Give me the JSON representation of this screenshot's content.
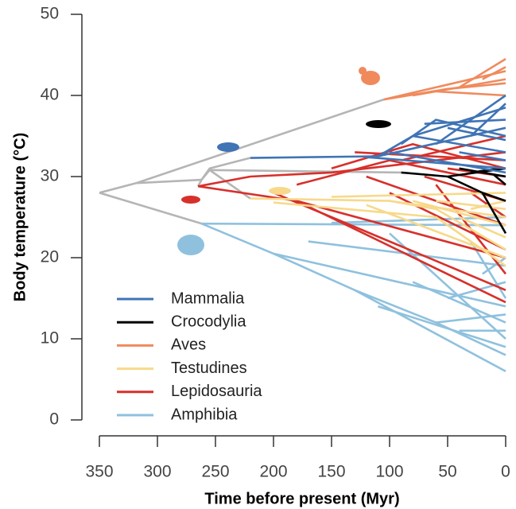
{
  "chart_data": {
    "type": "line",
    "xlabel": "Time before present (Myr)",
    "ylabel": "Body temperature (°C)",
    "xlim": [
      350,
      0
    ],
    "xticks": [
      350,
      300,
      250,
      200,
      150,
      100,
      50,
      0
    ],
    "ylim": [
      0,
      50
    ],
    "yticks": [
      0,
      10,
      20,
      30,
      40,
      50
    ],
    "backbone": {
      "color": "#b5b5b5",
      "branches": [
        {
          "x": [
            350,
            318
          ],
          "values": [
            28,
            29.2
          ]
        },
        {
          "x": [
            350,
            262
          ],
          "values": [
            28,
            24.2
          ]
        },
        {
          "x": [
            318,
            105
          ],
          "values": [
            29.2,
            39.5
          ]
        },
        {
          "x": [
            318,
            262
          ],
          "values": [
            29.2,
            29.6
          ]
        },
        {
          "x": [
            262,
            255,
            220
          ],
          "values": [
            29.6,
            31,
            32.3
          ]
        },
        {
          "x": [
            262,
            255,
            90
          ],
          "values": [
            29.6,
            30.8,
            30.5
          ]
        },
        {
          "x": [
            262,
            265
          ],
          "values": [
            29.6,
            28.8
          ]
        },
        {
          "x": [
            255,
            220
          ],
          "values": [
            30.8,
            27.3
          ]
        }
      ]
    },
    "series": [
      {
        "name": "Mammalia",
        "color": "#3f74b5",
        "branches": [
          {
            "x": [
              220,
              110
            ],
            "values": [
              32.3,
              32.5
            ]
          },
          {
            "x": [
              110,
              0
            ],
            "values": [
              32.5,
              36
            ]
          },
          {
            "x": [
              110,
              80,
              0
            ],
            "values": [
              32.5,
              35,
              38.5
            ]
          },
          {
            "x": [
              80,
              0
            ],
            "values": [
              35,
              33
            ]
          },
          {
            "x": [
              120,
              0
            ],
            "values": [
              32.4,
              31
            ]
          },
          {
            "x": [
              60,
              0
            ],
            "values": [
              34,
              40
            ]
          },
          {
            "x": [
              50,
              0
            ],
            "values": [
              36,
              34.5
            ]
          },
          {
            "x": [
              100,
              0
            ],
            "values": [
              33,
              30.5
            ]
          },
          {
            "x": [
              70,
              0
            ],
            "values": [
              36.5,
              37
            ]
          },
          {
            "x": [
              30,
              0
            ],
            "values": [
              35,
              39
            ]
          },
          {
            "x": [
              40,
              0
            ],
            "values": [
              33,
              32
            ]
          },
          {
            "x": [
              90,
              60,
              0
            ],
            "values": [
              34,
              37,
              35
            ]
          }
        ]
      },
      {
        "name": "Crocodylia",
        "color": "#000000",
        "branches": [
          {
            "x": [
              90,
              50,
              0
            ],
            "values": [
              30.5,
              30,
              31
            ]
          },
          {
            "x": [
              50,
              20,
              0
            ],
            "values": [
              30,
              28,
              27
            ]
          },
          {
            "x": [
              20,
              0
            ],
            "values": [
              28,
              23
            ]
          },
          {
            "x": [
              40,
              0
            ],
            "values": [
              31,
              30
            ]
          },
          {
            "x": [
              30,
              5
            ],
            "values": [
              30.5,
              31
            ]
          },
          {
            "x": [
              10,
              0
            ],
            "values": [
              30.2,
              29
            ]
          }
        ]
      },
      {
        "name": "Aves",
        "color": "#f08a5d",
        "branches": [
          {
            "x": [
              105,
              0
            ],
            "values": [
              39.5,
              43
            ]
          },
          {
            "x": [
              105,
              50,
              0
            ],
            "values": [
              39.5,
              40.8,
              41.5
            ]
          },
          {
            "x": [
              80,
              0
            ],
            "values": [
              40,
              42
            ]
          },
          {
            "x": [
              40,
              0
            ],
            "values": [
              41,
              44.5
            ]
          },
          {
            "x": [
              60,
              0
            ],
            "values": [
              40.5,
              40
            ]
          },
          {
            "x": [
              20,
              0
            ],
            "values": [
              42,
              43.5
            ]
          }
        ]
      },
      {
        "name": "Testudines",
        "color": "#f7d98b",
        "branches": [
          {
            "x": [
              220,
              100,
              0
            ],
            "values": [
              27.3,
              27,
              25
            ]
          },
          {
            "x": [
              100,
              60,
              0
            ],
            "values": [
              27,
              26,
              21
            ]
          },
          {
            "x": [
              150,
              0
            ],
            "values": [
              27.5,
              28
            ]
          },
          {
            "x": [
              80,
              0
            ],
            "values": [
              27,
              24
            ]
          },
          {
            "x": [
              60,
              0
            ],
            "values": [
              27,
              26
            ]
          },
          {
            "x": [
              40,
              0
            ],
            "values": [
              25,
              22.5
            ]
          },
          {
            "x": [
              120,
              0
            ],
            "values": [
              26.5,
              20
            ]
          },
          {
            "x": [
              30,
              0
            ],
            "values": [
              26,
              27
            ]
          },
          {
            "x": [
              200,
              60,
              0
            ],
            "values": [
              26.8,
              25,
              19
            ]
          }
        ]
      },
      {
        "name": "Lepidosauria",
        "color": "#d7302b",
        "branches": [
          {
            "x": [
              265,
              180,
              0
            ],
            "values": [
              28.8,
              27,
              14.5
            ]
          },
          {
            "x": [
              265,
              220,
              150,
              0
            ],
            "values": [
              28.8,
              30,
              30.5,
              33
            ]
          },
          {
            "x": [
              180,
              100,
              0
            ],
            "values": [
              29,
              32,
              29
            ]
          },
          {
            "x": [
              150,
              80,
              0
            ],
            "values": [
              31,
              34,
              31
            ]
          },
          {
            "x": [
              120,
              0
            ],
            "values": [
              30,
              24
            ]
          },
          {
            "x": [
              100,
              0
            ],
            "values": [
              28,
              21
            ]
          },
          {
            "x": [
              90,
              0
            ],
            "values": [
              32,
              35
            ]
          },
          {
            "x": [
              70,
              0
            ],
            "values": [
              30,
              27
            ]
          },
          {
            "x": [
              60,
              0
            ],
            "values": [
              29,
              18
            ]
          },
          {
            "x": [
              200,
              0
            ],
            "values": [
              28,
              16
            ]
          },
          {
            "x": [
              50,
              0
            ],
            "values": [
              31,
              30
            ]
          },
          {
            "x": [
              130,
              0
            ],
            "values": [
              33,
              32
            ]
          },
          {
            "x": [
              180,
              0
            ],
            "values": [
              27,
              20
            ]
          },
          {
            "x": [
              30,
              0
            ],
            "values": [
              28,
              25
            ]
          }
        ]
      },
      {
        "name": "Amphibia",
        "color": "#8fc1de",
        "branches": [
          {
            "x": [
              262,
              200,
              130,
              0
            ],
            "values": [
              24.2,
              20.5,
              16,
              6
            ]
          },
          {
            "x": [
              262,
              0
            ],
            "values": [
              24.2,
              24
            ]
          },
          {
            "x": [
              200,
              0
            ],
            "values": [
              20.5,
              14
            ]
          },
          {
            "x": [
              130,
              60,
              0
            ],
            "values": [
              16,
              12,
              8
            ]
          },
          {
            "x": [
              170,
              0
            ],
            "values": [
              22,
              19
            ]
          },
          {
            "x": [
              100,
              0
            ],
            "values": [
              23,
              10
            ]
          },
          {
            "x": [
              80,
              0
            ],
            "values": [
              17,
              12
            ]
          },
          {
            "x": [
              50,
              0
            ],
            "values": [
              15,
              17
            ]
          },
          {
            "x": [
              110,
              0
            ],
            "values": [
              14,
              9
            ]
          },
          {
            "x": [
              60,
              0
            ],
            "values": [
              12,
              13
            ]
          },
          {
            "x": [
              40,
              0
            ],
            "values": [
              11,
              11
            ]
          },
          {
            "x": [
              30,
              0
            ],
            "values": [
              22,
              15
            ]
          },
          {
            "x": [
              150,
              0
            ],
            "values": [
              24.3,
              25
            ]
          },
          {
            "x": [
              20,
              0
            ],
            "values": [
              18,
              20
            ]
          }
        ]
      }
    ]
  }
}
